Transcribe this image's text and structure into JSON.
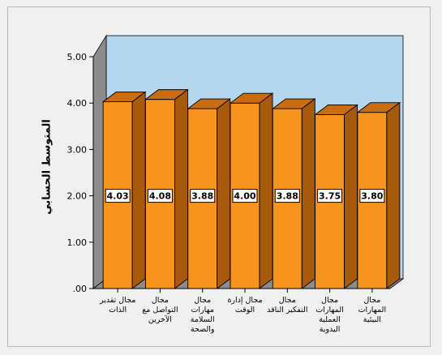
{
  "chart_data": {
    "type": "bar",
    "categories": [
      "مجال تقدير الذات",
      "مجال التواصل مع الآخرين",
      "مجال مهارات السلامة والصحة",
      "مجال إدارة الوقت",
      "مجال التفكير الناقد",
      "مجال المهارات العملية اليدوية",
      "مجال المهارات البيئية"
    ],
    "category_lines": [
      [
        "مجال تقدير",
        "الذات"
      ],
      [
        "مجال",
        "التواصل مع",
        "الآخرين"
      ],
      [
        "مجال",
        "مهارات",
        "السلامة",
        "والصحة"
      ],
      [
        "مجال إدارة",
        "الوقت"
      ],
      [
        "مجال",
        "التفكير الناقد"
      ],
      [
        "مجال",
        "المهارات",
        "العملية",
        "اليدوية"
      ],
      [
        "مجال",
        "المهارات",
        "البيئية"
      ]
    ],
    "values": [
      4.03,
      4.08,
      3.88,
      4.0,
      3.88,
      3.75,
      3.8
    ],
    "data_labels": [
      "4.03",
      "4.08",
      "3.88",
      "4.00",
      "3.88",
      "3.75",
      "3.80"
    ],
    "xlabel": "",
    "ylabel": "المتوسط الحسابي",
    "ylim": [
      0,
      5
    ],
    "yticks": [
      ".00",
      "1.00",
      "2.00",
      "3.00",
      "4.00",
      "5.00"
    ],
    "grid": false,
    "legend": "none",
    "colors": {
      "bar_front": "#f7941e",
      "bar_top": "#c96d10",
      "bar_side": "#a85a0c",
      "bar_edge": "#000000",
      "plot_background": "#b4d6ef",
      "left_wall": "#8c8c8c",
      "floor": "#8c8c8c",
      "label_box": "#ffffff"
    }
  }
}
